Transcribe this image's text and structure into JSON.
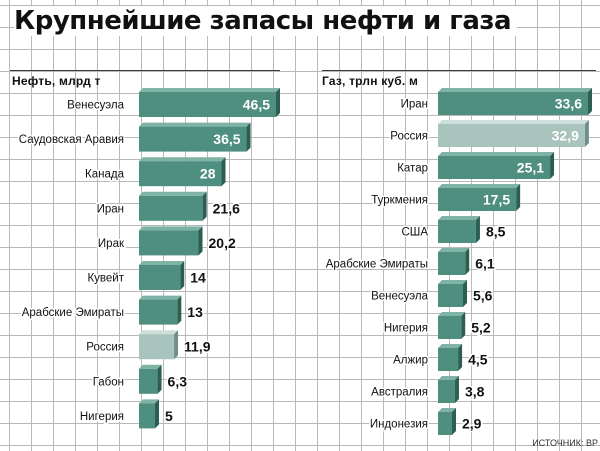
{
  "title": "Крупнейшие запасы нефти и газа",
  "source": "ИСТОЧНИК: BP",
  "colors": {
    "bar": "#4f8f80",
    "bar_side": "#2c5e52",
    "bar_top": "#7fb3a6",
    "highlight": "#a9c4bd",
    "highlight_side": "#6f8f88",
    "highlight_top": "#cddfda"
  },
  "chart_data": [
    {
      "type": "bar",
      "orientation": "horizontal",
      "unit_label": "Нефть, млрд т",
      "categories": [
        "Венесуэла",
        "Саудовская Аравия",
        "Канада",
        "Иран",
        "Ирак",
        "Кувейт",
        "Арабские Эмираты",
        "Россия",
        "Габон",
        "Нигерия"
      ],
      "values": [
        46.5,
        36.5,
        28,
        21.6,
        20.2,
        14,
        13,
        11.9,
        6.3,
        5
      ],
      "value_labels": [
        "46,5",
        "36,5",
        "28",
        "21,6",
        "20,2",
        "14",
        "13",
        "11,9",
        "6,3",
        "5"
      ],
      "highlight": "Россия"
    },
    {
      "type": "bar",
      "orientation": "horizontal",
      "unit_label": "Газ, трлн куб. м",
      "categories": [
        "Иран",
        "Россия",
        "Катар",
        "Туркмения",
        "США",
        "Арабские Эмираты",
        "Венесуэла",
        "Нигерия",
        "Алжир",
        "Австралия",
        "Индонезия"
      ],
      "values": [
        33.6,
        32.9,
        25.1,
        17.5,
        8.5,
        6.1,
        5.6,
        5.2,
        4.5,
        3.8,
        2.9
      ],
      "value_labels": [
        "33,6",
        "32,9",
        "25,1",
        "17,5",
        "8,5",
        "6,1",
        "5,6",
        "5,2",
        "4,5",
        "3,8",
        "2,9"
      ],
      "highlight": "Россия"
    }
  ]
}
